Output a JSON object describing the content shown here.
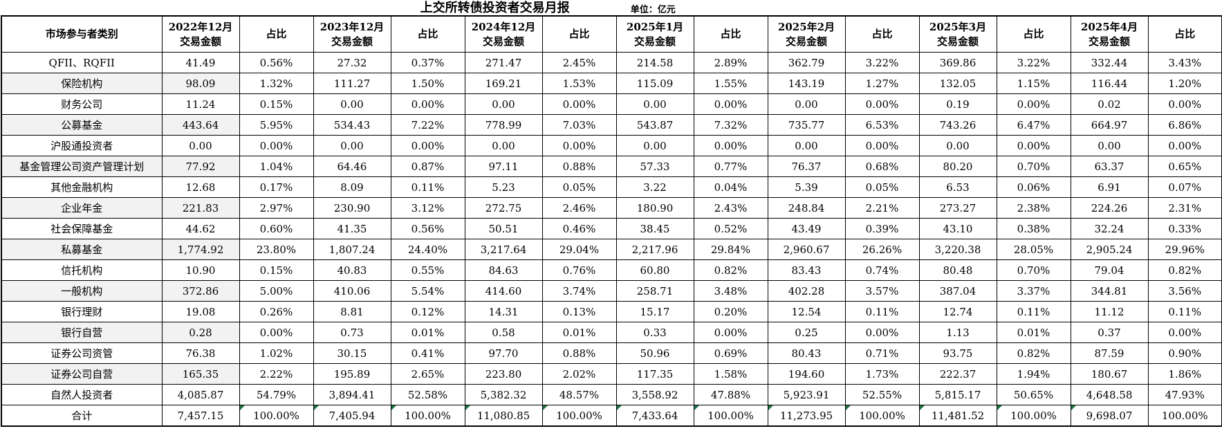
{
  "title": "上交所转债投资者交易月报",
  "unit_label": "单位：亿元",
  "colors": {
    "grid": "#000000",
    "stripe": "#f2f2f2",
    "marker": "#1f7244"
  },
  "table": {
    "header": {
      "category": "市场参与者类别",
      "amount_label": "交易金额",
      "share_label": "占比",
      "periods": [
        "2022年12月",
        "2023年12月",
        "2024年12月",
        "2025年1月",
        "2025年2月",
        "2025年3月",
        "2025年4月"
      ]
    },
    "rows": [
      {
        "category": "QFII、RQFII",
        "values": [
          "41.49",
          "0.56%",
          "27.32",
          "0.37%",
          "271.47",
          "2.45%",
          "214.58",
          "2.89%",
          "362.79",
          "3.22%",
          "369.86",
          "3.22%",
          "332.44",
          "3.43%"
        ]
      },
      {
        "category": "保险机构",
        "values": [
          "98.09",
          "1.32%",
          "111.27",
          "1.50%",
          "169.21",
          "1.53%",
          "115.09",
          "1.55%",
          "143.19",
          "1.27%",
          "132.05",
          "1.15%",
          "116.44",
          "1.20%"
        ]
      },
      {
        "category": "财务公司",
        "values": [
          "11.24",
          "0.15%",
          "0.00",
          "0.00%",
          "0.00",
          "0.00%",
          "0.00",
          "0.00%",
          "0.00",
          "0.00%",
          "0.19",
          "0.00%",
          "0.02",
          "0.00%"
        ]
      },
      {
        "category": "公募基金",
        "values": [
          "443.64",
          "5.95%",
          "534.43",
          "7.22%",
          "778.99",
          "7.03%",
          "543.87",
          "7.32%",
          "735.77",
          "6.53%",
          "743.26",
          "6.47%",
          "664.97",
          "6.86%"
        ]
      },
      {
        "category": "沪股通投资者",
        "values": [
          "0.00",
          "0.00%",
          "0.00",
          "0.00%",
          "0.00",
          "0.00%",
          "0.00",
          "0.00%",
          "0.00",
          "0.00%",
          "0.00",
          "0.00%",
          "0.00",
          "0.00%"
        ]
      },
      {
        "category": "基金管理公司资产管理计划",
        "values": [
          "77.92",
          "1.04%",
          "64.46",
          "0.87%",
          "97.11",
          "0.88%",
          "57.33",
          "0.77%",
          "76.37",
          "0.68%",
          "80.20",
          "0.70%",
          "63.37",
          "0.65%"
        ]
      },
      {
        "category": "其他金融机构",
        "values": [
          "12.68",
          "0.17%",
          "8.09",
          "0.11%",
          "5.23",
          "0.05%",
          "3.22",
          "0.04%",
          "5.39",
          "0.05%",
          "6.53",
          "0.06%",
          "6.91",
          "0.07%"
        ]
      },
      {
        "category": "企业年金",
        "values": [
          "221.83",
          "2.97%",
          "230.90",
          "3.12%",
          "272.75",
          "2.46%",
          "180.90",
          "2.43%",
          "248.84",
          "2.21%",
          "273.27",
          "2.38%",
          "224.26",
          "2.31%"
        ]
      },
      {
        "category": "社会保障基金",
        "values": [
          "44.62",
          "0.60%",
          "41.35",
          "0.56%",
          "50.51",
          "0.46%",
          "38.45",
          "0.52%",
          "43.49",
          "0.39%",
          "43.10",
          "0.38%",
          "32.24",
          "0.33%"
        ]
      },
      {
        "category": "私募基金",
        "values": [
          "1,774.92",
          "23.80%",
          "1,807.24",
          "24.40%",
          "3,217.64",
          "29.04%",
          "2,217.96",
          "29.84%",
          "2,960.67",
          "26.26%",
          "3,220.38",
          "28.05%",
          "2,905.24",
          "29.96%"
        ]
      },
      {
        "category": "信托机构",
        "values": [
          "10.90",
          "0.15%",
          "40.83",
          "0.55%",
          "84.63",
          "0.76%",
          "60.80",
          "0.82%",
          "83.43",
          "0.74%",
          "80.48",
          "0.70%",
          "79.04",
          "0.82%"
        ]
      },
      {
        "category": "一般机构",
        "values": [
          "372.86",
          "5.00%",
          "410.06",
          "5.54%",
          "414.60",
          "3.74%",
          "258.71",
          "3.48%",
          "402.28",
          "3.57%",
          "387.04",
          "3.37%",
          "344.81",
          "3.56%"
        ]
      },
      {
        "category": "银行理财",
        "values": [
          "19.08",
          "0.26%",
          "8.81",
          "0.12%",
          "14.31",
          "0.13%",
          "15.17",
          "0.20%",
          "12.54",
          "0.11%",
          "12.74",
          "0.11%",
          "11.12",
          "0.11%"
        ]
      },
      {
        "category": "银行自营",
        "values": [
          "0.28",
          "0.00%",
          "0.73",
          "0.01%",
          "0.58",
          "0.01%",
          "0.33",
          "0.00%",
          "0.25",
          "0.00%",
          "1.13",
          "0.01%",
          "0.37",
          "0.00%"
        ]
      },
      {
        "category": "证券公司资管",
        "values": [
          "76.38",
          "1.02%",
          "30.15",
          "0.41%",
          "97.70",
          "0.88%",
          "50.96",
          "0.69%",
          "80.43",
          "0.71%",
          "93.75",
          "0.82%",
          "87.59",
          "0.90%"
        ]
      },
      {
        "category": "证券公司自营",
        "values": [
          "165.35",
          "2.22%",
          "195.89",
          "2.65%",
          "223.80",
          "2.02%",
          "117.35",
          "1.58%",
          "194.60",
          "1.73%",
          "222.37",
          "1.94%",
          "180.67",
          "1.86%"
        ]
      },
      {
        "category": "自然人投资者",
        "values": [
          "4,085.87",
          "54.79%",
          "3,894.41",
          "52.58%",
          "5,382.32",
          "48.57%",
          "3,558.92",
          "47.88%",
          "5,923.91",
          "52.55%",
          "5,815.17",
          "50.65%",
          "4,648.58",
          "47.93%"
        ]
      }
    ],
    "total_row": {
      "category": "合计",
      "values": [
        "7,457.15",
        "100.00%",
        "7,405.94",
        "100.00%",
        "11,080.85",
        "100.00%",
        "7,433.64",
        "100.00%",
        "11,273.95",
        "100.00%",
        "11,481.52",
        "100.00%",
        "9,698.07",
        "100.00%"
      ],
      "marker_value_indices": [
        1,
        2,
        3,
        4,
        5,
        6,
        7,
        8,
        9,
        10,
        11,
        12
      ]
    }
  }
}
